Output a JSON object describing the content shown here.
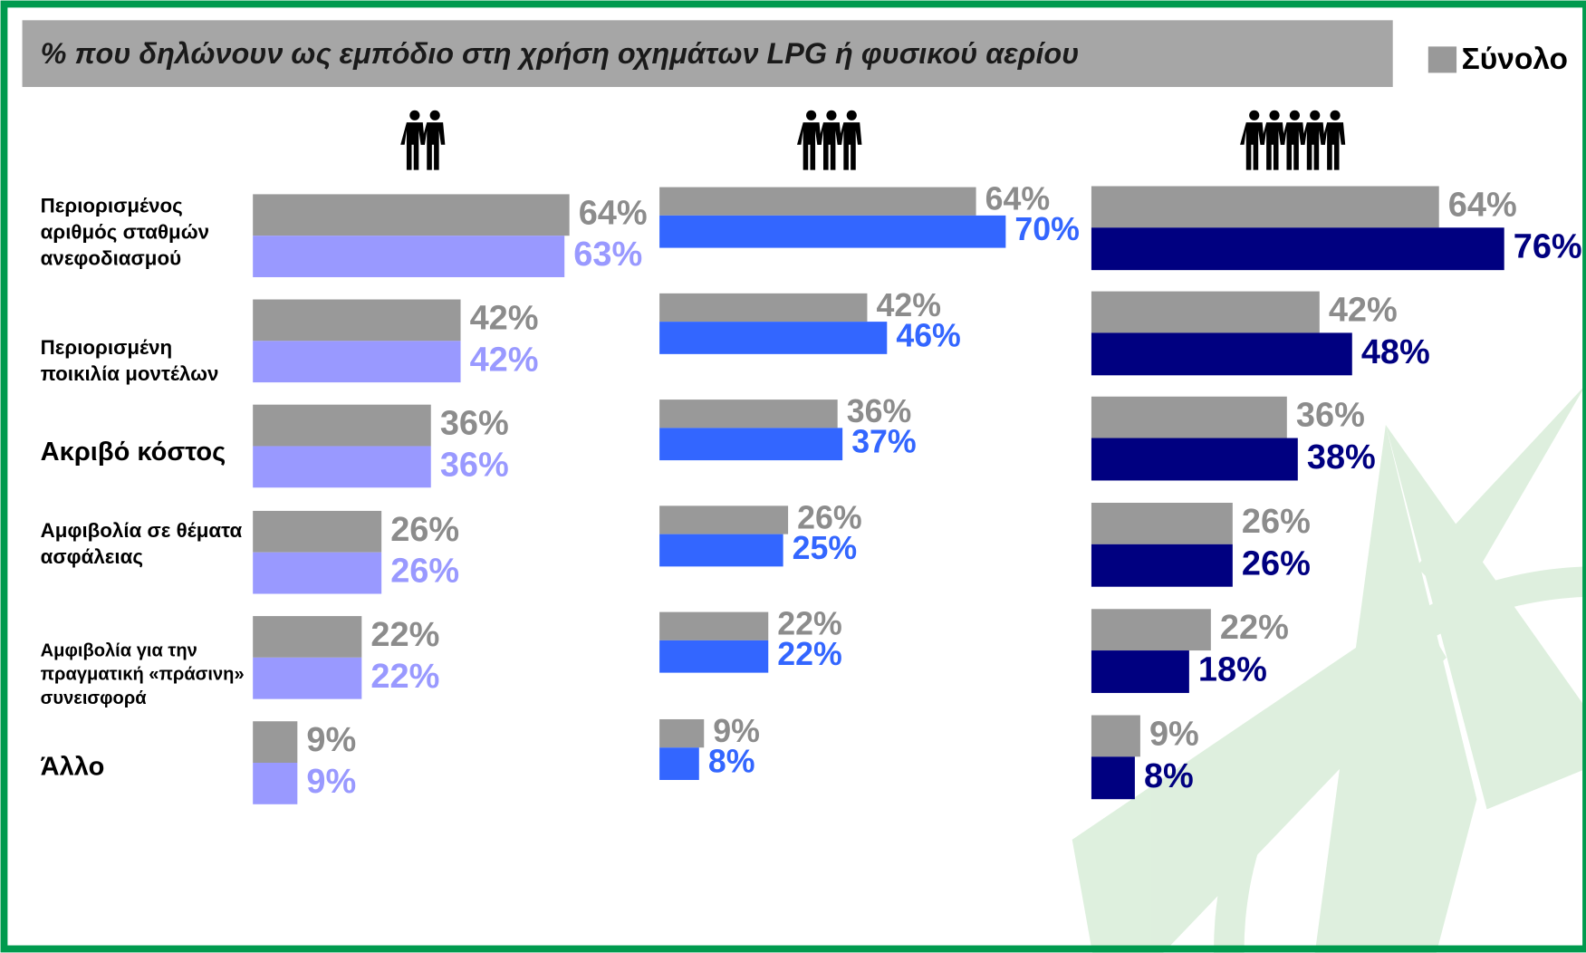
{
  "chart_data": {
    "type": "bar",
    "title": "% που δηλώνουν ως εμπόδιο στη χρήση οχημάτων LPG ή φυσικού αερίου",
    "categories": [
      "Περιορισμένος αριθμός σταθμών ανεφοδιασμού",
      "Περιορισμένη ποικιλία μοντέλων",
      "Ακριβό κόστος",
      "Αμφιβολία σε θέματα ασφάλειας",
      "Αμφιβολία για την πραγματική «πράσινη» συνεισφορά",
      "Άλλο"
    ],
    "series": [
      {
        "name": "Σύνολο",
        "color": "#999999",
        "values": [
          64,
          42,
          36,
          26,
          22,
          9
        ],
        "value_labels": [
          "64%",
          "42%",
          "36%",
          "26%",
          "22%",
          "9%"
        ]
      },
      {
        "color": "#9999ff",
        "values": [
          63,
          42,
          36,
          26,
          22,
          9
        ],
        "value_labels": [
          "63%",
          "42%",
          "36%",
          "26%",
          "22%",
          "9%"
        ]
      },
      {
        "color": "#3366ff",
        "values": [
          70,
          46,
          37,
          25,
          22,
          8
        ],
        "value_labels": [
          "70%",
          "46%",
          "37%",
          "25%",
          "22%",
          "8%"
        ]
      },
      {
        "color": "#000080",
        "values": [
          76,
          48,
          38,
          26,
          18,
          8
        ],
        "value_labels": [
          "76%",
          "48%",
          "38%",
          "26%",
          "18%",
          "8%"
        ]
      }
    ],
    "legend": "top-right"
  }
}
